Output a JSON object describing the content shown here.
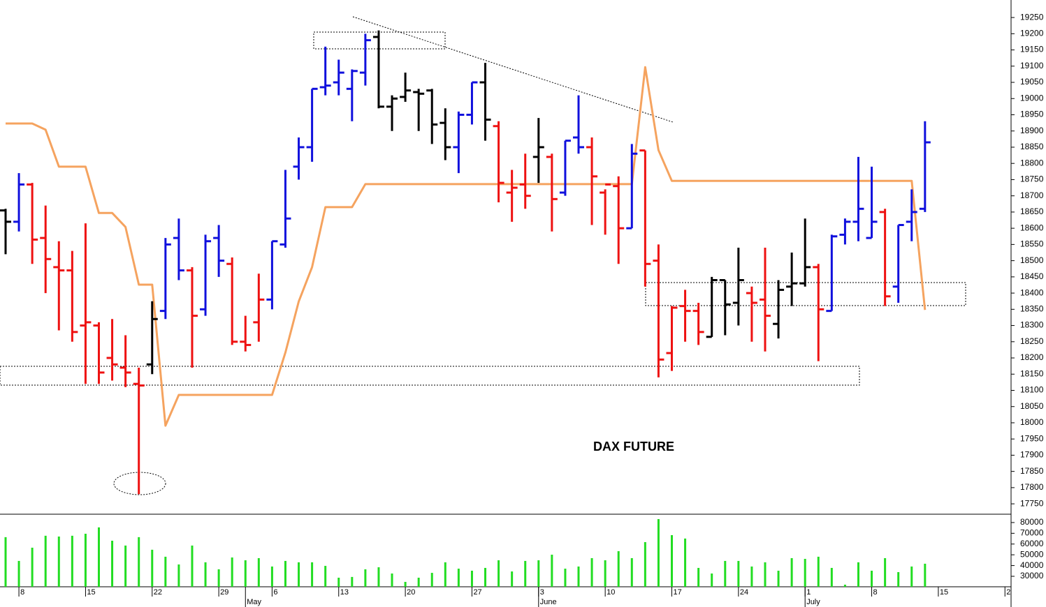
{
  "chart_data": {
    "type": "ohlc",
    "title": "DAX FUTURE",
    "categories": [
      null,
      "8",
      null,
      null,
      null,
      null,
      "15",
      null,
      null,
      null,
      null,
      "22",
      null,
      null,
      null,
      null,
      "29",
      null,
      null,
      null,
      "6",
      null,
      null,
      null,
      null,
      "13",
      null,
      null,
      null,
      null,
      "20",
      null,
      null,
      null,
      null,
      "27",
      null,
      null,
      null,
      null,
      "3",
      null,
      null,
      null,
      null,
      "10",
      null,
      null,
      null,
      null,
      "17",
      null,
      null,
      null,
      null,
      "24",
      null,
      null,
      null,
      null,
      "1",
      null,
      null,
      null,
      null,
      "8",
      null,
      null,
      null,
      null,
      "15",
      null,
      null,
      null,
      null,
      "2"
    ],
    "month_labels": [
      null,
      null,
      null,
      null,
      null,
      null,
      null,
      null,
      null,
      null,
      null,
      null,
      null,
      null,
      null,
      null,
      null,
      null,
      "May",
      null,
      null,
      null,
      null,
      null,
      null,
      null,
      null,
      null,
      null,
      null,
      null,
      null,
      null,
      null,
      null,
      null,
      null,
      null,
      null,
      null,
      "June",
      null,
      null,
      null,
      null,
      null,
      null,
      null,
      null,
      null,
      null,
      null,
      null,
      null,
      null,
      null,
      null,
      null,
      null,
      null,
      "July",
      null,
      null,
      null,
      null,
      null,
      null,
      null,
      null,
      null,
      null,
      null,
      null,
      null,
      null,
      null
    ],
    "open": [
      18655,
      18620,
      18735,
      18570,
      18480,
      18470,
      18300,
      18300,
      18200,
      18170,
      18120,
      18180,
      18345,
      18570,
      18470,
      18350,
      18570,
      18490,
      18250,
      18310,
      18380,
      18550,
      18790,
      18850,
      19035,
      19050,
      19030,
      19080,
      19190,
      18975,
      19005,
      19020,
      19025,
      18925,
      18850,
      18950,
      19050,
      18915,
      18710,
      18735,
      18820,
      18820,
      18710,
      18880,
      18850,
      18710,
      18730,
      18600,
      18840,
      18500,
      18215,
      18360,
      18345,
      18265,
      18440,
      18370,
      18400,
      18380,
      18305,
      18420,
      18430,
      18480,
      18345,
      18580,
      18620,
      18570,
      18650,
      18420,
      18620,
      18660,
      null,
      null,
      null,
      null,
      null,
      null
    ],
    "high": [
      18660,
      18770,
      18740,
      18670,
      18560,
      18530,
      18615,
      18310,
      18320,
      18270,
      18170,
      18375,
      18570,
      18630,
      18480,
      18580,
      18610,
      18510,
      18330,
      18460,
      18560,
      18780,
      18880,
      19030,
      19160,
      19120,
      19090,
      19200,
      19210,
      19010,
      19080,
      19030,
      19030,
      18970,
      18960,
      19050,
      19110,
      18930,
      18780,
      18830,
      18940,
      18830,
      18870,
      19010,
      18880,
      18720,
      18760,
      18860,
      18840,
      18550,
      18360,
      18410,
      18370,
      18450,
      18440,
      18540,
      18420,
      18540,
      18440,
      18525,
      18630,
      18490,
      18580,
      18630,
      18820,
      18790,
      18660,
      18610,
      18720,
      18930,
      null,
      null,
      null,
      null,
      null,
      null
    ],
    "low": [
      18520,
      18590,
      18490,
      18400,
      18285,
      18250,
      18120,
      18120,
      18130,
      18110,
      17780,
      18150,
      18320,
      18440,
      18170,
      18330,
      18450,
      18240,
      18220,
      18250,
      18350,
      18540,
      18750,
      18805,
      19010,
      19010,
      18930,
      19040,
      18970,
      18900,
      18990,
      18900,
      18860,
      18810,
      18770,
      18920,
      18870,
      18680,
      18620,
      18660,
      18740,
      18590,
      18700,
      18830,
      18610,
      18580,
      18490,
      18600,
      18420,
      18140,
      18160,
      18250,
      18240,
      18265,
      18270,
      18300,
      18250,
      18220,
      18260,
      18360,
      18420,
      18190,
      18345,
      18550,
      18560,
      18570,
      18360,
      18370,
      18560,
      18650,
      null,
      null,
      null,
      null,
      null,
      null
    ],
    "close": [
      18620,
      18735,
      18565,
      18505,
      18470,
      18280,
      18310,
      18155,
      18180,
      18155,
      18115,
      18320,
      18550,
      18470,
      18330,
      18560,
      18500,
      18250,
      18240,
      18380,
      18560,
      18630,
      18850,
      19030,
      19040,
      19080,
      19085,
      19180,
      18975,
      19000,
      19025,
      19015,
      18920,
      18850,
      18950,
      19050,
      18935,
      18740,
      18725,
      18700,
      18850,
      18690,
      18870,
      18850,
      18760,
      18735,
      18600,
      18830,
      18490,
      18195,
      18355,
      18345,
      18280,
      18440,
      18365,
      18440,
      18370,
      18330,
      18410,
      18430,
      18480,
      18350,
      18575,
      18620,
      18660,
      18620,
      18390,
      18610,
      18650,
      18865,
      null,
      null,
      null,
      null,
      null,
      null
    ],
    "bar_colors": [
      "#000000",
      "#1010dd",
      "#ee1111",
      "#ee1111",
      "#ee1111",
      "#ee1111",
      "#ee1111",
      "#ee1111",
      "#ee1111",
      "#ee1111",
      "#ee1111",
      "#000000",
      "#1010dd",
      "#1010dd",
      "#ee1111",
      "#1010dd",
      "#1010dd",
      "#ee1111",
      "#ee1111",
      "#ee1111",
      "#1010dd",
      "#1010dd",
      "#1010dd",
      "#1010dd",
      "#1010dd",
      "#1010dd",
      "#1010dd",
      "#1010dd",
      "#000000",
      "#000000",
      "#000000",
      "#000000",
      "#000000",
      "#000000",
      "#1010dd",
      "#1010dd",
      "#000000",
      "#ee1111",
      "#ee1111",
      "#ee1111",
      "#000000",
      "#ee1111",
      "#1010dd",
      "#1010dd",
      "#ee1111",
      "#ee1111",
      "#ee1111",
      "#1010dd",
      "#ee1111",
      "#ee1111",
      "#ee1111",
      "#ee1111",
      "#ee1111",
      "#000000",
      "#000000",
      "#000000",
      "#ee1111",
      "#ee1111",
      "#000000",
      "#000000",
      "#000000",
      "#ee1111",
      "#1010dd",
      "#1010dd",
      "#1010dd",
      "#1010dd",
      "#ee1111",
      "#1010dd",
      "#1010dd",
      "#1010dd",
      null,
      null,
      null,
      null,
      null,
      null
    ],
    "ylim": [
      17718,
      19304
    ],
    "yticks": [
      17750,
      17800,
      17850,
      17900,
      17950,
      18000,
      18050,
      18100,
      18150,
      18200,
      18250,
      18300,
      18350,
      18400,
      18450,
      18500,
      18550,
      18600,
      18650,
      18700,
      18750,
      18800,
      18850,
      18900,
      18950,
      19000,
      19050,
      19100,
      19150,
      19200,
      19250
    ],
    "line": {
      "color": "#f5a35f",
      "values": [
        18923,
        18923,
        18923,
        18904,
        18790,
        18790,
        18790,
        18647,
        18647,
        18604,
        18426,
        18426,
        17991,
        18086,
        18086,
        18086,
        18086,
        18086,
        18086,
        18086,
        18086,
        18217,
        18374,
        18480,
        18665,
        18665,
        18665,
        18736,
        18736,
        18736,
        18736,
        18736,
        18736,
        18736,
        18736,
        18736,
        18736,
        18736,
        18736,
        18736,
        18736,
        18736,
        18736,
        18736,
        18736,
        18736,
        18736,
        18736,
        19097,
        18841,
        18746,
        18746,
        18746,
        18746,
        18746,
        18746,
        18746,
        18746,
        18746,
        18746,
        18746,
        18746,
        18746,
        18746,
        18746,
        18746,
        18746,
        18746,
        18746,
        18348,
        null,
        null,
        null,
        null,
        null,
        null
      ]
    },
    "volume": {
      "color": "#22dd22",
      "ylim": [
        20260,
        87100
      ],
      "yticks": [
        30000,
        40000,
        50000,
        60000,
        70000,
        80000
      ],
      "values": [
        66400,
        44300,
        56600,
        67700,
        67000,
        67700,
        69600,
        75500,
        63100,
        58600,
        66400,
        54700,
        48200,
        41000,
        58600,
        43000,
        36500,
        47500,
        44900,
        46900,
        39100,
        44300,
        43000,
        43000,
        39700,
        28700,
        29400,
        36500,
        38400,
        32600,
        24800,
        28700,
        33200,
        43000,
        37100,
        35200,
        37800,
        44900,
        34500,
        44300,
        44900,
        50100,
        37100,
        39100,
        46900,
        44900,
        53400,
        46900,
        61800,
        83200,
        68300,
        65100,
        37800,
        32600,
        44300,
        44300,
        39100,
        43000,
        35200,
        46900,
        46200,
        48200,
        37800,
        22200,
        43000,
        35200,
        46900,
        33900,
        39100,
        41700,
        null,
        null,
        null,
        null,
        null,
        null
      ]
    }
  }
}
